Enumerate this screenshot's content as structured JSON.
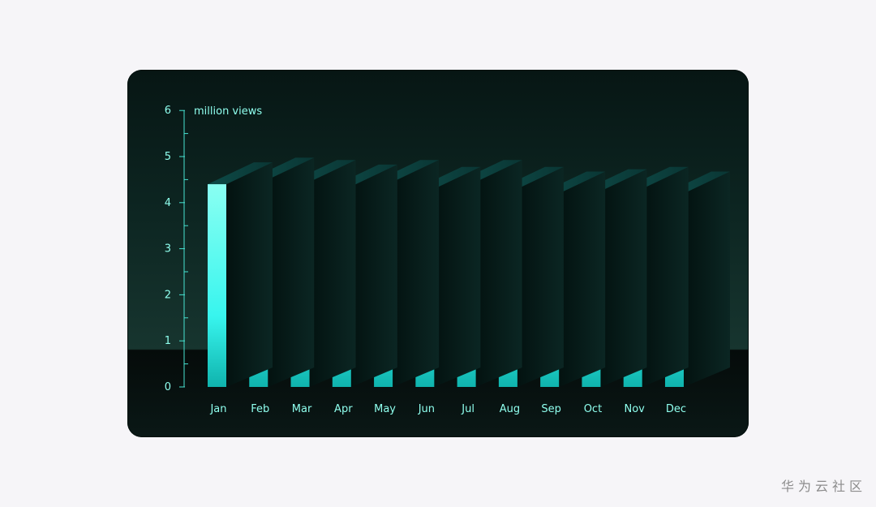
{
  "chart_data": {
    "type": "bar",
    "ylabel": "million views",
    "categories": [
      "Jan",
      "Feb",
      "Mar",
      "Apr",
      "May",
      "Jun",
      "Jul",
      "Aug",
      "Sep",
      "Oct",
      "Nov",
      "Dec"
    ],
    "values": [
      4.4,
      4.5,
      4.45,
      4.35,
      4.45,
      4.3,
      4.45,
      4.3,
      4.2,
      4.25,
      4.3,
      4.2
    ],
    "ylim": [
      0,
      6
    ],
    "yticks": [
      0,
      1,
      2,
      3,
      4,
      5,
      6
    ],
    "grid": false,
    "colors": {
      "bar_top": "#8afff2",
      "bar_mid": "#38f5ee",
      "bar_bottom": "#0fb3ad",
      "axis": "#48e3d2",
      "label": "#8fffee"
    }
  },
  "watermark": "华为云社区"
}
